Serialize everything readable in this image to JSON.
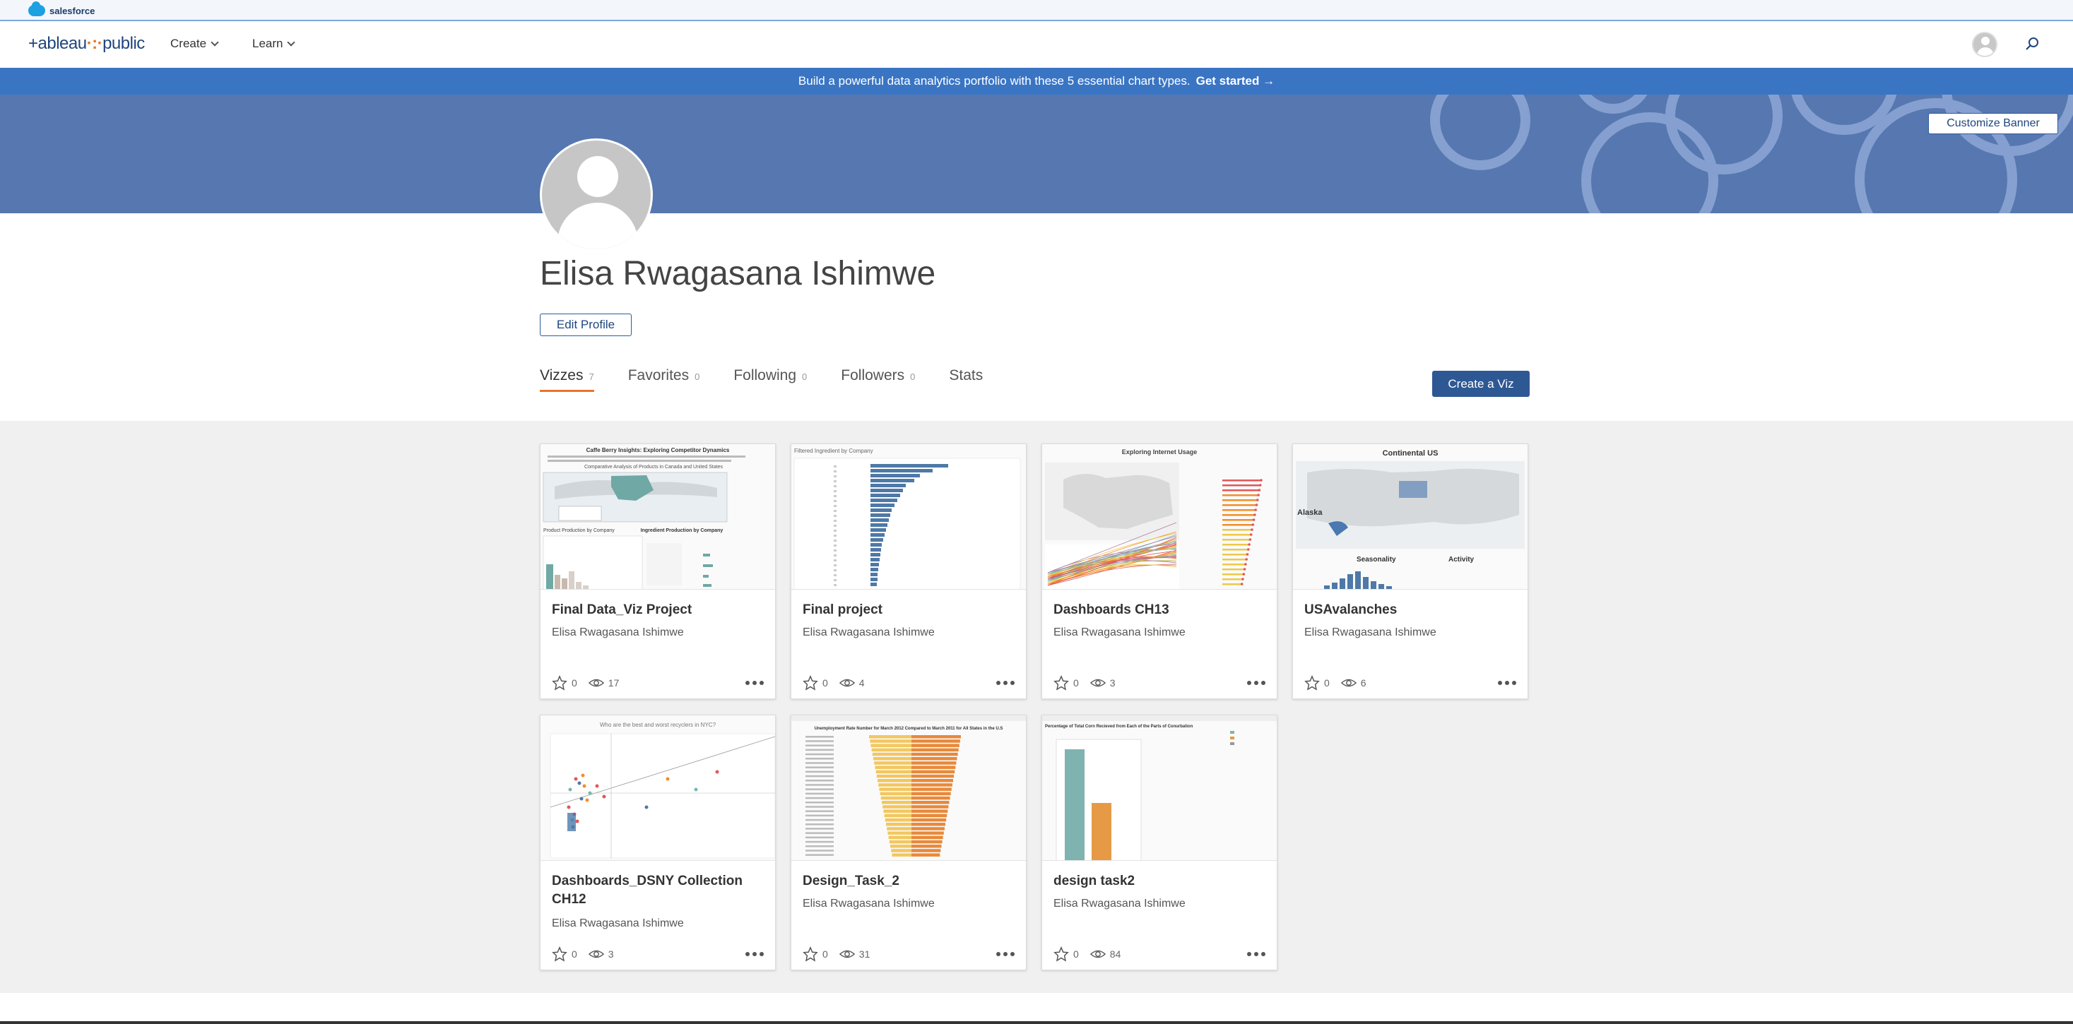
{
  "salesforce": {
    "label": "salesforce"
  },
  "nav": {
    "logo": "+ableau",
    "logo_suffix": "public",
    "items": [
      {
        "label": "Create"
      },
      {
        "label": "Learn"
      }
    ]
  },
  "promo": {
    "text": "Build a powerful data analytics portfolio with these 5 essential chart types.",
    "link": "Get started →"
  },
  "banner": {
    "customize_label": "Customize Banner"
  },
  "profile": {
    "name": "Elisa Rwagasana Ishimwe",
    "edit_label": "Edit Profile"
  },
  "tabs": [
    {
      "label": "Vizzes",
      "count": "7"
    },
    {
      "label": "Favorites",
      "count": "0"
    },
    {
      "label": "Following",
      "count": "0"
    },
    {
      "label": "Followers",
      "count": "0"
    },
    {
      "label": "Stats",
      "count": ""
    }
  ],
  "create_label": "Create a Viz",
  "cards": [
    {
      "title": "Final Data_Viz Project",
      "author": "Elisa Rwagasana Ishimwe",
      "stars": "0",
      "views": "17"
    },
    {
      "title": "Final project",
      "author": "Elisa Rwagasana Ishimwe",
      "stars": "0",
      "views": "4"
    },
    {
      "title": "Dashboards CH13",
      "author": "Elisa Rwagasana Ishimwe",
      "stars": "0",
      "views": "3"
    },
    {
      "title": "USAvalanches",
      "author": "Elisa Rwagasana Ishimwe",
      "stars": "0",
      "views": "6"
    },
    {
      "title": "Dashboards_DSNY Collection CH12",
      "author": "Elisa Rwagasana Ishimwe",
      "stars": "0",
      "views": "3"
    },
    {
      "title": "Design_Task_2",
      "author": "Elisa Rwagasana Ishimwe",
      "stars": "0",
      "views": "31"
    },
    {
      "title": "design task2",
      "author": "Elisa Rwagasana Ishimwe",
      "stars": "0",
      "views": "84"
    }
  ],
  "thumb_text": {
    "t1_title": "Caffe Berry Insights: Exploring Competitor Dynamics",
    "t1_sub": "Comparative Analysis of Products in Canada and United States",
    "t1_p1": "Product Production by Company",
    "t1_p2": "Ingredient Production by Company",
    "t2_title": "Filtered Ingredient by Company",
    "t3_title": "Exploring Internet Usage",
    "t4_title": "Continental US",
    "t4_a": "Alaska",
    "t4_s": "Seasonality",
    "t4_act": "Activity",
    "t5_title": "Who are the best and worst recyclers in NYC?",
    "t6_title": "Unemployment Rate Number for March 2012 Compared to March 2011 for All States in the U.S",
    "t7_title": "Percentage of Total Corn Recieved from Each of the Parts of Conurbation"
  },
  "colors": {
    "brand": "#1f457e",
    "accent": "#e97627",
    "promo": "#3a75c4",
    "banner": "#5677b0"
  }
}
